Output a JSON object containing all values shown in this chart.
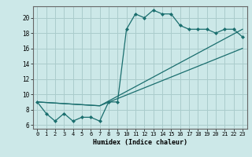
{
  "title": "",
  "xlabel": "Humidex (Indice chaleur)",
  "ylabel": "",
  "xlim": [
    -0.5,
    23.5
  ],
  "ylim": [
    5.5,
    21.5
  ],
  "xticks": [
    0,
    1,
    2,
    3,
    4,
    5,
    6,
    7,
    8,
    9,
    10,
    11,
    12,
    13,
    14,
    15,
    16,
    17,
    18,
    19,
    20,
    21,
    22,
    23
  ],
  "yticks": [
    6,
    8,
    10,
    12,
    14,
    16,
    18,
    20
  ],
  "bg_color": "#cce8e8",
  "grid_color": "#aacccc",
  "line_color": "#1a6e6e",
  "line1": {
    "x": [
      0,
      1,
      2,
      3,
      4,
      5,
      6,
      7,
      8,
      9,
      10,
      11,
      12,
      13,
      14,
      15,
      16,
      17,
      18,
      19,
      20,
      21,
      22,
      23
    ],
    "y": [
      9,
      7.5,
      6.5,
      7.5,
      6.5,
      7,
      7,
      6.5,
      9,
      9,
      18.5,
      20.5,
      20,
      21,
      20.5,
      20.5,
      19,
      18.5,
      18.5,
      18.5,
      18,
      18.5,
      18.5,
      17.5
    ]
  },
  "line2": {
    "x": [
      0,
      7,
      23
    ],
    "y": [
      9,
      8.5,
      16
    ]
  },
  "line3": {
    "x": [
      0,
      7,
      23
    ],
    "y": [
      9,
      8.5,
      18.5
    ]
  }
}
